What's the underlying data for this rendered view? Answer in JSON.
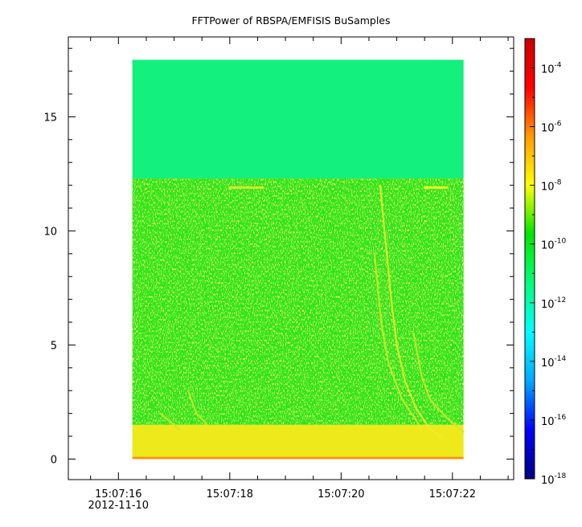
{
  "chart_data": {
    "type": "heatmap",
    "title": "FFTPower of RBSPA/EMFISIS  BuSamples",
    "xlabel": "",
    "ylabel": "",
    "x_range": [
      "15:07:15.1",
      "15:07:23.1"
    ],
    "x_data_extent": [
      "15:07:16.25",
      "15:07:22.2"
    ],
    "x_ticks": [
      {
        "value": "15:07:16",
        "label": "15:07:16",
        "sublabel": "2012-11-10"
      },
      {
        "value": "15:07:18",
        "label": "15:07:18",
        "sublabel": ""
      },
      {
        "value": "15:07:20",
        "label": "15:07:20",
        "sublabel": ""
      },
      {
        "value": "15:07:22",
        "label": "15:07:22",
        "sublabel": ""
      }
    ],
    "x_minor_tick_interval_s": 0.5,
    "y_range": [
      -0.9,
      18.5
    ],
    "y_data_extent": [
      0,
      17.5
    ],
    "y_ticks": [
      0,
      5,
      10,
      15
    ],
    "y_minor_tick_interval": 1,
    "colorbar": {
      "scale": "log",
      "range": [
        1e-18,
        0.001
      ],
      "ticks": [
        {
          "value": 0.0001,
          "base": "10",
          "exp": "-4"
        },
        {
          "value": 1e-06,
          "base": "10",
          "exp": "-6"
        },
        {
          "value": 1e-08,
          "base": "10",
          "exp": "-8"
        },
        {
          "value": 1e-10,
          "base": "10",
          "exp": "-10"
        },
        {
          "value": 1e-12,
          "base": "10",
          "exp": "-12"
        },
        {
          "value": 1e-14,
          "base": "10",
          "exp": "-14"
        },
        {
          "value": 1e-16,
          "base": "10",
          "exp": "-16"
        },
        {
          "value": 1e-18,
          "base": "10",
          "exp": "-18"
        }
      ],
      "colors": [
        "#00007f",
        "#0000ff",
        "#00a8ff",
        "#00ffff",
        "#00ff7a",
        "#00e600",
        "#ffff00",
        "#ff9b00",
        "#ff0000",
        "#c80000"
      ]
    },
    "regions": [
      {
        "name": "upper band",
        "y_range": [
          12.3,
          17.5
        ],
        "log_power": -12,
        "color": "#13f07e"
      },
      {
        "name": "middle band",
        "y_range": [
          1.5,
          12.3
        ],
        "log_power": -10.5,
        "color": "#2de41d"
      },
      {
        "name": "low band",
        "y_range": [
          0.1,
          1.5
        ],
        "log_power": -8.7,
        "color": "#eee91b"
      },
      {
        "name": "bottom edge",
        "y_range": [
          0,
          0.1
        ],
        "log_power": -7.5,
        "color": "#ff9000"
      }
    ],
    "features": [
      {
        "name": "whistler-1",
        "points": [
          [
            20.7,
            12.0
          ],
          [
            20.8,
            9.5
          ],
          [
            20.9,
            7.0
          ],
          [
            21.0,
            5.0
          ],
          [
            21.15,
            3.4
          ],
          [
            21.35,
            2.2
          ],
          [
            21.6,
            1.3
          ],
          [
            21.85,
            0.9
          ]
        ],
        "color": "#f2ea2a"
      },
      {
        "name": "whistler-2",
        "points": [
          [
            20.6,
            9.0
          ],
          [
            20.72,
            6.0
          ],
          [
            20.85,
            4.2
          ],
          [
            21.1,
            2.6
          ],
          [
            21.4,
            1.5
          ]
        ],
        "color": "#d8e62a"
      },
      {
        "name": "whistler-3",
        "points": [
          [
            21.3,
            5.5
          ],
          [
            21.45,
            3.6
          ],
          [
            21.6,
            2.6
          ],
          [
            21.9,
            1.8
          ],
          [
            22.2,
            1.2
          ]
        ],
        "color": "#d2e62a"
      },
      {
        "name": "faint-1",
        "points": [
          [
            17.25,
            3.0
          ],
          [
            17.4,
            2.0
          ],
          [
            17.6,
            1.5
          ]
        ],
        "color": "#cfe52a"
      },
      {
        "name": "faint-2",
        "points": [
          [
            16.75,
            2.0
          ],
          [
            16.95,
            1.6
          ],
          [
            17.1,
            1.3
          ]
        ],
        "color": "#cfe52a"
      },
      {
        "name": "line-1",
        "points": [
          [
            18.0,
            11.9
          ],
          [
            18.6,
            11.9
          ]
        ],
        "color": "#e8e930"
      },
      {
        "name": "line-2",
        "points": [
          [
            21.5,
            11.9
          ],
          [
            21.9,
            11.9
          ]
        ],
        "color": "#fff82a"
      }
    ]
  }
}
